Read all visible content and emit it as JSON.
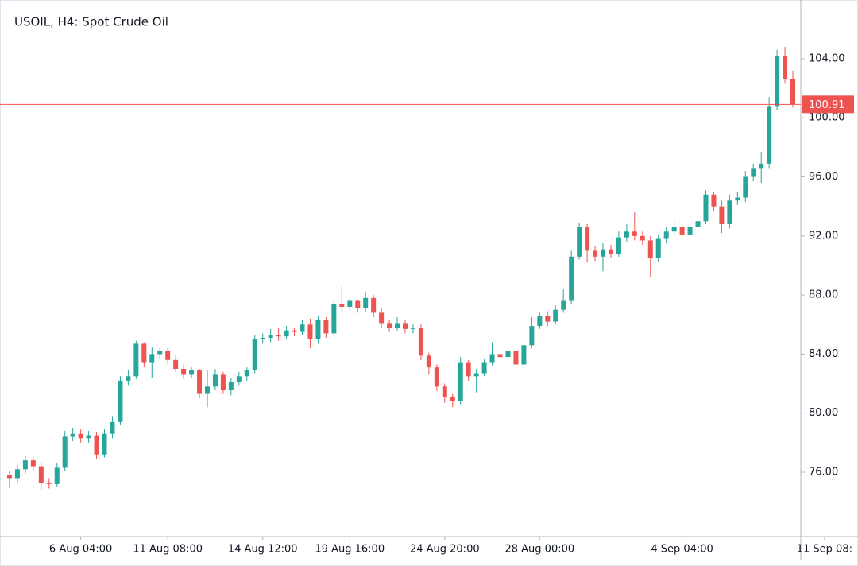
{
  "chart_data": {
    "type": "candlestick",
    "title": "USOIL, H4: Spot Crude Oil",
    "up_color": "#26a69a",
    "down_color": "#ef5350",
    "open": [
      75.8,
      75.6,
      76.2,
      76.8,
      76.4,
      75.3,
      75.2,
      76.3,
      78.4,
      78.6,
      78.3,
      78.5,
      77.2,
      78.6,
      79.4,
      82.2,
      82.5,
      84.7,
      83.4,
      84.0,
      84.2,
      83.6,
      83.0,
      82.6,
      82.9,
      81.3,
      81.8,
      82.6,
      81.6,
      82.1,
      82.5,
      82.9,
      85.0,
      85.1,
      85.3,
      85.2,
      85.6,
      85.5,
      86.0,
      85.0,
      86.3,
      85.4,
      87.4,
      87.2,
      87.6,
      87.1,
      87.8,
      86.8,
      86.1,
      85.8,
      86.1,
      85.7,
      85.8,
      83.9,
      83.1,
      81.8,
      81.1,
      80.8,
      83.4,
      82.5,
      82.7,
      83.4,
      84.0,
      83.8,
      84.2,
      83.3,
      84.6,
      85.9,
      86.6,
      86.2,
      87.0,
      87.6,
      90.6,
      92.6,
      91.0,
      90.6,
      91.1,
      90.8,
      91.9,
      92.3,
      92.0,
      91.7,
      90.5,
      91.8,
      92.3,
      92.6,
      92.1,
      92.6,
      93.0,
      94.8,
      94.0,
      92.8,
      94.4,
      94.6,
      96.0,
      96.6,
      96.9,
      100.8,
      104.2,
      102.6
    ],
    "high": [
      76.1,
      76.5,
      77.1,
      77.0,
      76.6,
      75.6,
      76.6,
      78.8,
      79.0,
      78.9,
      78.8,
      78.7,
      78.9,
      79.8,
      82.5,
      82.9,
      84.9,
      84.8,
      84.5,
      84.4,
      84.4,
      83.9,
      83.3,
      83.1,
      83.0,
      82.9,
      83.0,
      82.8,
      82.4,
      82.8,
      83.1,
      85.3,
      85.4,
      85.7,
      85.8,
      85.9,
      85.8,
      86.3,
      86.4,
      86.6,
      86.5,
      87.6,
      88.6,
      87.8,
      87.7,
      88.2,
      88.0,
      87.1,
      86.3,
      86.5,
      86.3,
      86.0,
      86.0,
      84.1,
      83.3,
      82.0,
      81.3,
      83.8,
      83.6,
      83.0,
      83.7,
      84.8,
      84.3,
      84.4,
      84.3,
      84.8,
      86.5,
      86.8,
      86.9,
      87.3,
      88.4,
      91.0,
      92.9,
      92.8,
      91.3,
      91.5,
      91.4,
      92.3,
      92.8,
      93.6,
      92.3,
      92.0,
      92.1,
      92.6,
      93.0,
      92.8,
      93.5,
      93.4,
      95.1,
      95.0,
      94.4,
      94.8,
      95.0,
      96.4,
      96.9,
      97.7,
      101.4,
      104.6,
      104.8,
      103.2
    ],
    "low": [
      74.9,
      75.3,
      75.9,
      76.1,
      74.8,
      74.9,
      75.0,
      76.1,
      78.1,
      78.0,
      78.0,
      76.9,
      77.0,
      78.3,
      79.2,
      81.9,
      82.3,
      83.1,
      82.4,
      83.7,
      83.3,
      82.8,
      82.3,
      82.4,
      81.0,
      80.4,
      81.6,
      81.3,
      81.2,
      81.9,
      82.2,
      82.7,
      84.7,
      84.8,
      84.9,
      85.0,
      85.2,
      85.3,
      84.4,
      84.7,
      85.1,
      85.2,
      86.9,
      86.9,
      86.8,
      86.9,
      86.5,
      85.8,
      85.5,
      85.6,
      85.4,
      85.4,
      83.6,
      82.6,
      81.5,
      80.7,
      80.4,
      80.6,
      82.2,
      81.4,
      82.5,
      83.2,
      83.5,
      83.6,
      83.0,
      83.0,
      84.4,
      85.7,
      85.9,
      86.0,
      86.8,
      87.4,
      90.4,
      90.2,
      90.3,
      89.6,
      90.5,
      90.6,
      91.6,
      91.7,
      91.4,
      89.2,
      90.2,
      91.5,
      92.0,
      91.8,
      91.9,
      92.4,
      92.8,
      93.7,
      92.2,
      92.5,
      94.1,
      94.3,
      95.7,
      95.6,
      96.6,
      100.5,
      102.3,
      100.7
    ],
    "close": [
      75.6,
      76.2,
      76.8,
      76.4,
      75.3,
      75.2,
      76.3,
      78.4,
      78.6,
      78.3,
      78.5,
      77.2,
      78.6,
      79.4,
      82.2,
      82.5,
      84.7,
      83.4,
      84.0,
      84.2,
      83.6,
      83.0,
      82.6,
      82.9,
      81.3,
      81.8,
      82.6,
      81.6,
      82.1,
      82.5,
      82.9,
      85.0,
      85.1,
      85.3,
      85.2,
      85.6,
      85.5,
      86.0,
      85.0,
      86.3,
      85.4,
      87.4,
      87.2,
      87.6,
      87.1,
      87.8,
      86.8,
      86.1,
      85.8,
      86.1,
      85.7,
      85.8,
      83.9,
      83.1,
      81.8,
      81.1,
      80.8,
      83.4,
      82.5,
      82.7,
      83.4,
      84.0,
      83.8,
      84.2,
      83.3,
      84.6,
      85.9,
      86.6,
      86.2,
      87.0,
      87.6,
      90.6,
      92.6,
      91.0,
      90.6,
      91.1,
      90.8,
      91.9,
      92.3,
      92.0,
      91.7,
      90.5,
      91.8,
      92.3,
      92.6,
      92.1,
      92.6,
      93.0,
      94.8,
      94.0,
      92.8,
      94.4,
      94.6,
      96.0,
      96.6,
      96.9,
      100.8,
      104.2,
      102.6,
      100.91
    ],
    "last_price": 100.91,
    "xlim": [
      -0.4,
      100
    ],
    "xticks": [
      {
        "value": 9,
        "label": "6 Aug 04:00"
      },
      {
        "value": 20,
        "label": "11 Aug 08:00"
      },
      {
        "value": 32,
        "label": "14 Aug 12:00"
      },
      {
        "value": 43,
        "label": "19 Aug 16:00"
      },
      {
        "value": 55,
        "label": "24 Aug 20:00"
      },
      {
        "value": 67,
        "label": "28 Aug 00:00"
      },
      {
        "value": 85,
        "label": "4 Sep 04:00"
      },
      {
        "value": 103,
        "label": "11 Sep 08:"
      }
    ],
    "ylim": [
      71.64,
      107.55
    ],
    "yticks": [
      {
        "value": 76,
        "label": "76.00"
      },
      {
        "value": 80,
        "label": "80.00"
      },
      {
        "value": 84,
        "label": "84.00"
      },
      {
        "value": 88,
        "label": "88.00"
      },
      {
        "value": 92,
        "label": "92.00"
      },
      {
        "value": 96,
        "label": "96.00"
      },
      {
        "value": 100,
        "label": "100.00"
      },
      {
        "value": 104,
        "label": "104.00"
      }
    ]
  }
}
